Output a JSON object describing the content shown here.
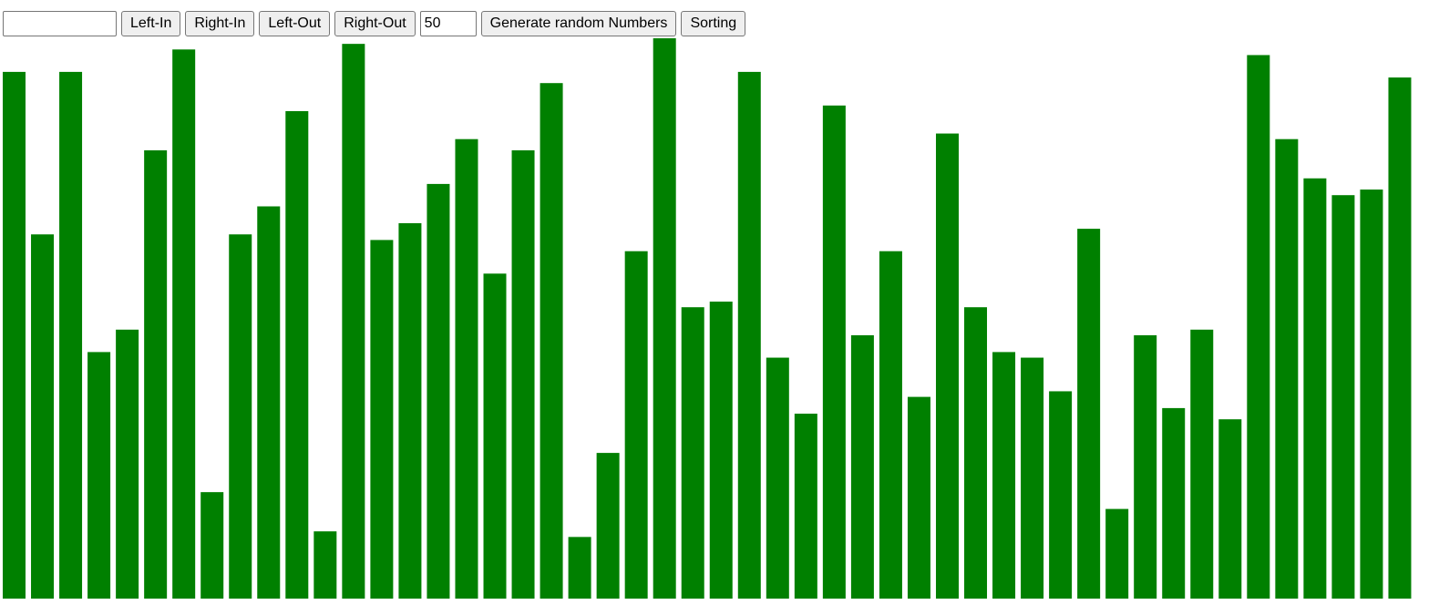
{
  "toolbar": {
    "value_input": {
      "value": "",
      "placeholder": ""
    },
    "left_in_label": "Left-In",
    "right_in_label": "Right-In",
    "left_out_label": "Left-Out",
    "right_out_label": "Right-Out",
    "count_input": {
      "value": "50"
    },
    "generate_label": "Generate random Numbers",
    "sorting_label": "Sorting"
  },
  "chart_data": {
    "type": "bar",
    "bar_color": "#008000",
    "grid": false,
    "values": [
      94,
      65,
      94,
      44,
      48,
      80,
      98,
      19,
      65,
      70,
      87,
      12,
      99,
      64,
      67,
      74,
      82,
      58,
      80,
      92,
      11,
      26,
      62,
      100,
      52,
      53,
      94,
      43,
      33,
      88,
      47,
      62,
      36,
      83,
      52,
      44,
      43,
      37,
      66,
      16,
      47,
      34,
      48,
      32,
      97,
      82,
      75,
      72,
      73,
      93
    ]
  }
}
